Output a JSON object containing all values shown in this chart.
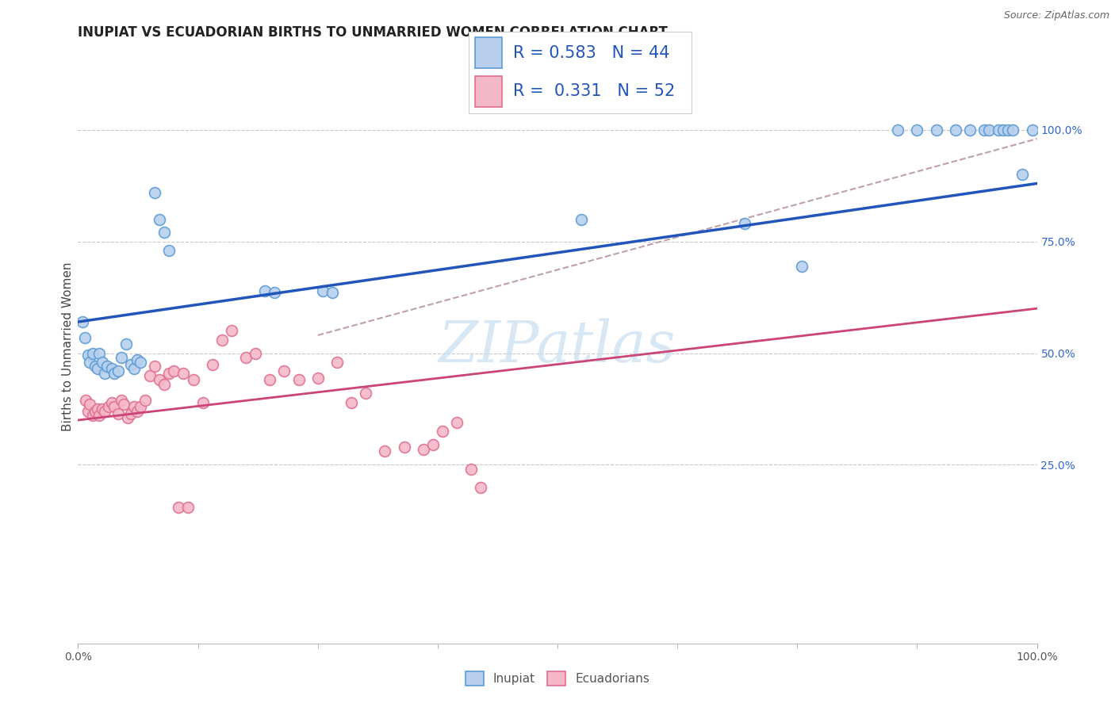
{
  "title": "INUPIAT VS ECUADORIAN BIRTHS TO UNMARRIED WOMEN CORRELATION CHART",
  "source": "Source: ZipAtlas.com",
  "ylabel": "Births to Unmarried Women",
  "right_yticks": [
    0.25,
    0.5,
    0.75,
    1.0
  ],
  "right_yticklabels": [
    "25.0%",
    "50.0%",
    "75.0%",
    "100.0%"
  ],
  "xlim": [
    0.0,
    1.0
  ],
  "ylim": [
    -0.15,
    1.18
  ],
  "R_inupiat": 0.583,
  "N_inupiat": 44,
  "R_ecuadorian": 0.331,
  "N_ecuadorian": 52,
  "inupiat_fill": "#b8d0ed",
  "inupiat_edge": "#5b9bd5",
  "ecuadorian_fill": "#f4b8c8",
  "ecuadorian_edge": "#e07090",
  "inupiat_line_color": "#2255bb",
  "ecuadorian_line_color": "#cc4477",
  "ref_line_color": "#c0a0a8",
  "grid_color": "#c8c8c8",
  "background_color": "#ffffff",
  "watermark": "ZIPatlas",
  "inupiat_x": [
    0.005,
    0.007,
    0.01,
    0.012,
    0.015,
    0.018,
    0.02,
    0.022,
    0.025,
    0.028,
    0.03,
    0.035,
    0.038,
    0.042,
    0.045,
    0.05,
    0.055,
    0.058,
    0.062,
    0.065,
    0.08,
    0.085,
    0.09,
    0.095,
    0.195,
    0.205,
    0.255,
    0.265,
    0.525,
    0.695,
    0.755,
    0.855,
    0.875,
    0.895,
    0.915,
    0.93,
    0.945,
    0.95,
    0.96,
    0.965,
    0.97,
    0.975,
    0.985,
    0.995
  ],
  "inupiat_y": [
    0.57,
    0.535,
    0.495,
    0.48,
    0.5,
    0.47,
    0.465,
    0.5,
    0.48,
    0.455,
    0.47,
    0.465,
    0.455,
    0.46,
    0.49,
    0.52,
    0.475,
    0.465,
    0.485,
    0.48,
    0.86,
    0.8,
    0.77,
    0.73,
    0.64,
    0.635,
    0.64,
    0.635,
    0.8,
    0.79,
    0.695,
    1.0,
    1.0,
    1.0,
    1.0,
    1.0,
    1.0,
    1.0,
    1.0,
    1.0,
    1.0,
    1.0,
    0.9,
    1.0
  ],
  "ecuadorian_x": [
    0.008,
    0.01,
    0.012,
    0.015,
    0.018,
    0.02,
    0.022,
    0.025,
    0.028,
    0.032,
    0.035,
    0.038,
    0.042,
    0.045,
    0.048,
    0.052,
    0.055,
    0.058,
    0.062,
    0.065,
    0.07,
    0.075,
    0.08,
    0.085,
    0.09,
    0.095,
    0.1,
    0.11,
    0.12,
    0.13,
    0.14,
    0.15,
    0.16,
    0.175,
    0.185,
    0.2,
    0.215,
    0.23,
    0.25,
    0.27,
    0.285,
    0.3,
    0.32,
    0.34,
    0.36,
    0.37,
    0.38,
    0.395,
    0.41,
    0.42,
    0.105,
    0.115
  ],
  "ecuadorian_y": [
    0.395,
    0.37,
    0.385,
    0.36,
    0.37,
    0.375,
    0.36,
    0.375,
    0.37,
    0.38,
    0.39,
    0.38,
    0.365,
    0.395,
    0.385,
    0.355,
    0.365,
    0.38,
    0.37,
    0.38,
    0.395,
    0.45,
    0.47,
    0.44,
    0.43,
    0.455,
    0.46,
    0.455,
    0.44,
    0.39,
    0.475,
    0.53,
    0.55,
    0.49,
    0.5,
    0.44,
    0.46,
    0.44,
    0.445,
    0.48,
    0.39,
    0.41,
    0.28,
    0.29,
    0.285,
    0.295,
    0.325,
    0.345,
    0.24,
    0.2,
    0.155,
    0.155
  ],
  "title_fontsize": 12,
  "label_fontsize": 11,
  "tick_fontsize": 10,
  "legend_fontsize": 15,
  "marker_size": 100,
  "marker_lw": 1.2
}
